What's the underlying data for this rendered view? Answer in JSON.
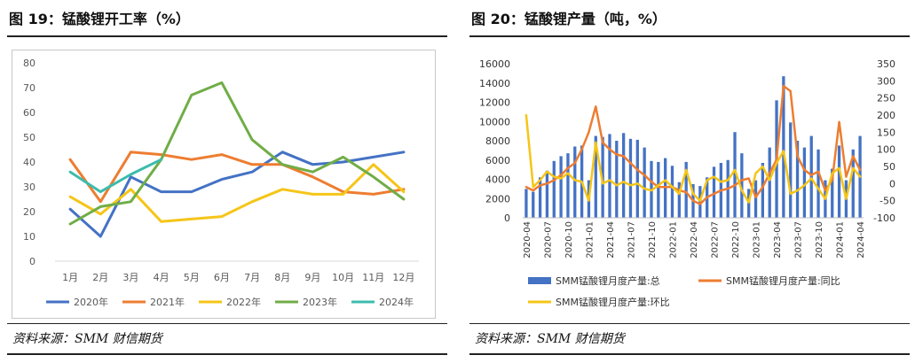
{
  "left": {
    "fig_title": "图 19：锰酸锂开工率（%）",
    "source": "资料来源：SMM  财信期货",
    "chart_data": {
      "type": "line",
      "title": "",
      "categories": [
        "1月",
        "2月",
        "3月",
        "4月",
        "5月",
        "6月",
        "7月",
        "8月",
        "9月",
        "10月",
        "11月",
        "12月"
      ],
      "ylim": [
        0,
        80
      ],
      "yticks": [
        0,
        10,
        20,
        30,
        40,
        50,
        60,
        70,
        80
      ],
      "grid": false,
      "legend_placement": "bottom",
      "series": [
        {
          "name": "2020年",
          "color": "#4472c4",
          "values": [
            21,
            10,
            34,
            28,
            28,
            33,
            36,
            44,
            39,
            40,
            42,
            44
          ]
        },
        {
          "name": "2021年",
          "color": "#ed7d31",
          "values": [
            41,
            24,
            44,
            43,
            41,
            43,
            39,
            39,
            34,
            28,
            27,
            29
          ]
        },
        {
          "name": "2022年",
          "color": "#f5c518",
          "values": [
            26,
            19,
            29,
            16,
            17,
            18,
            24,
            29,
            27,
            27,
            39,
            28
          ]
        },
        {
          "name": "2023年",
          "color": "#70ad47",
          "values": [
            15,
            22,
            24,
            41,
            67,
            72,
            49,
            39,
            36,
            42,
            34,
            25
          ]
        },
        {
          "name": "2024年",
          "color": "#3cbcac",
          "values": [
            36,
            28,
            35,
            41,
            null,
            null,
            null,
            null,
            null,
            null,
            null,
            null
          ]
        }
      ]
    }
  },
  "right": {
    "fig_title": "图 20：锰酸锂产量（吨，%）",
    "source": "资料来源：SMM  财信期货",
    "chart_data": {
      "type": "bar",
      "title": "",
      "x_tick_labels": [
        "2020-04",
        "2020-07",
        "2020-10",
        "2021-01",
        "2021-04",
        "2021-07",
        "2021-10",
        "2022-01",
        "2022-04",
        "2022-07",
        "2022-10",
        "2023-01",
        "2023-04",
        "2023-07",
        "2023-10",
        "2024-01",
        "2024-04"
      ],
      "x": [
        "2020-04",
        "2020-05",
        "2020-06",
        "2020-07",
        "2020-08",
        "2020-09",
        "2020-10",
        "2020-11",
        "2020-12",
        "2021-01",
        "2021-02",
        "2021-03",
        "2021-04",
        "2021-05",
        "2021-06",
        "2021-07",
        "2021-08",
        "2021-09",
        "2021-10",
        "2021-11",
        "2021-12",
        "2022-01",
        "2022-02",
        "2022-03",
        "2022-04",
        "2022-05",
        "2022-06",
        "2022-07",
        "2022-08",
        "2022-09",
        "2022-10",
        "2022-11",
        "2022-12",
        "2023-01",
        "2023-02",
        "2023-03",
        "2023-04",
        "2023-05",
        "2023-06",
        "2023-07",
        "2023-08",
        "2023-09",
        "2023-10",
        "2023-11",
        "2023-12",
        "2024-01",
        "2024-02",
        "2024-03",
        "2024-04"
      ],
      "ylim_left": [
        0,
        16000
      ],
      "yticks_left": [
        0,
        2000,
        4000,
        6000,
        8000,
        10000,
        12000,
        14000,
        16000
      ],
      "ylim_right": [
        -100,
        350
      ],
      "yticks_right": [
        -100,
        -50,
        0,
        50,
        100,
        150,
        200,
        250,
        300,
        350
      ],
      "grid": false,
      "legend_placement": "bottom",
      "series": [
        {
          "name": "SMM锰酸锂月度产量:总",
          "type": "bar",
          "axis": "left",
          "color": "#4472c4",
          "values": [
            3000,
            2700,
            4200,
            4900,
            5900,
            6400,
            6700,
            7400,
            7500,
            3900,
            8500,
            8400,
            8700,
            8000,
            8800,
            8200,
            8100,
            7300,
            5900,
            5800,
            6200,
            5400,
            3700,
            5800,
            3500,
            3300,
            4200,
            5300,
            5700,
            6000,
            8900,
            6700,
            3000,
            3900,
            5700,
            7300,
            12200,
            14700,
            9900,
            8000,
            7300,
            8500,
            7100,
            3900,
            5100,
            7500,
            3900,
            7100,
            8500
          ]
        },
        {
          "name": "SMM锰酸锂月度产量:同比",
          "type": "line",
          "axis": "right",
          "color": "#ed7d31",
          "values": [
            -10,
            -20,
            -5,
            0,
            10,
            25,
            45,
            60,
            100,
            150,
            225,
            120,
            100,
            85,
            80,
            60,
            40,
            25,
            5,
            -10,
            -10,
            -10,
            -20,
            -25,
            -50,
            -60,
            -40,
            -30,
            -20,
            -15,
            -5,
            10,
            15,
            -40,
            -10,
            30,
            70,
            285,
            270,
            80,
            40,
            25,
            35,
            -20,
            10,
            180,
            20,
            80,
            40
          ]
        },
        {
          "name": "SMM锰酸锂月度产量:环比",
          "type": "line",
          "axis": "right",
          "color": "#f5c518",
          "values": [
            200,
            -10,
            10,
            35,
            20,
            15,
            30,
            10,
            5,
            -50,
            120,
            0,
            10,
            -5,
            5,
            -5,
            0,
            -15,
            -20,
            -5,
            10,
            -10,
            -30,
            40,
            -30,
            -50,
            10,
            20,
            5,
            10,
            40,
            -20,
            -55,
            30,
            50,
            10,
            60,
            95,
            -30,
            -20,
            -5,
            15,
            -15,
            -45,
            30,
            45,
            -45,
            45,
            20
          ]
        }
      ]
    }
  }
}
